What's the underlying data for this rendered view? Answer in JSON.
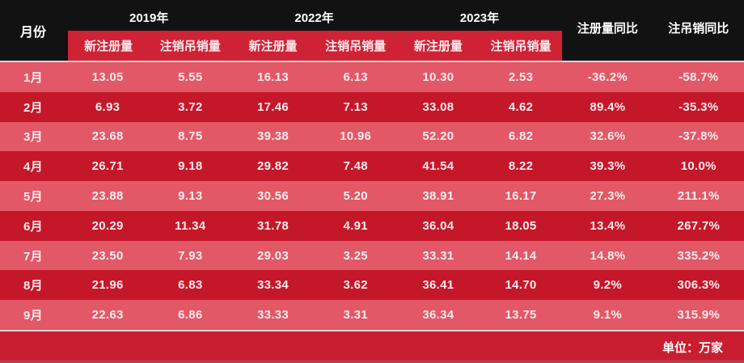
{
  "chart_data": {
    "type": "table",
    "month_column_header": "月份",
    "year_groups": [
      "2019年",
      "2022年",
      "2023年"
    ],
    "sub_columns": [
      "新注册量",
      "注销吊销量"
    ],
    "yoy_columns": [
      "注册量同比",
      "注吊销同比"
    ],
    "rows": [
      {
        "month": "1月",
        "values": [
          "13.05",
          "5.55",
          "16.13",
          "6.13",
          "10.30",
          "2.53",
          "-36.2%",
          "-58.7%"
        ]
      },
      {
        "month": "2月",
        "values": [
          "6.93",
          "3.72",
          "17.46",
          "7.13",
          "33.08",
          "4.62",
          "89.4%",
          "-35.3%"
        ]
      },
      {
        "month": "3月",
        "values": [
          "23.68",
          "8.75",
          "39.38",
          "10.96",
          "52.20",
          "6.82",
          "32.6%",
          "-37.8%"
        ]
      },
      {
        "month": "4月",
        "values": [
          "26.71",
          "9.18",
          "29.82",
          "7.48",
          "41.54",
          "8.22",
          "39.3%",
          "10.0%"
        ]
      },
      {
        "month": "5月",
        "values": [
          "23.88",
          "9.13",
          "30.56",
          "5.20",
          "38.91",
          "16.17",
          "27.3%",
          "211.1%"
        ]
      },
      {
        "month": "6月",
        "values": [
          "20.29",
          "11.34",
          "31.78",
          "4.91",
          "36.04",
          "18.05",
          "13.4%",
          "267.7%"
        ]
      },
      {
        "month": "7月",
        "values": [
          "23.50",
          "7.93",
          "29.03",
          "3.25",
          "33.31",
          "14.14",
          "14.8%",
          "335.2%"
        ]
      },
      {
        "month": "8月",
        "values": [
          "21.96",
          "6.83",
          "33.34",
          "3.62",
          "36.41",
          "14.70",
          "9.2%",
          "306.3%"
        ]
      },
      {
        "month": "9月",
        "values": [
          "22.63",
          "6.86",
          "33.33",
          "3.31",
          "36.34",
          "13.75",
          "9.1%",
          "315.9%"
        ]
      }
    ],
    "unit_note": "单位：万家"
  },
  "colors": {
    "header_bg": "#121212",
    "subheader_red": "#d02235",
    "row_light": "#e25866",
    "row_dark": "#c5172a",
    "footer_red": "#c91e30",
    "separator": "#d8d3d5"
  }
}
